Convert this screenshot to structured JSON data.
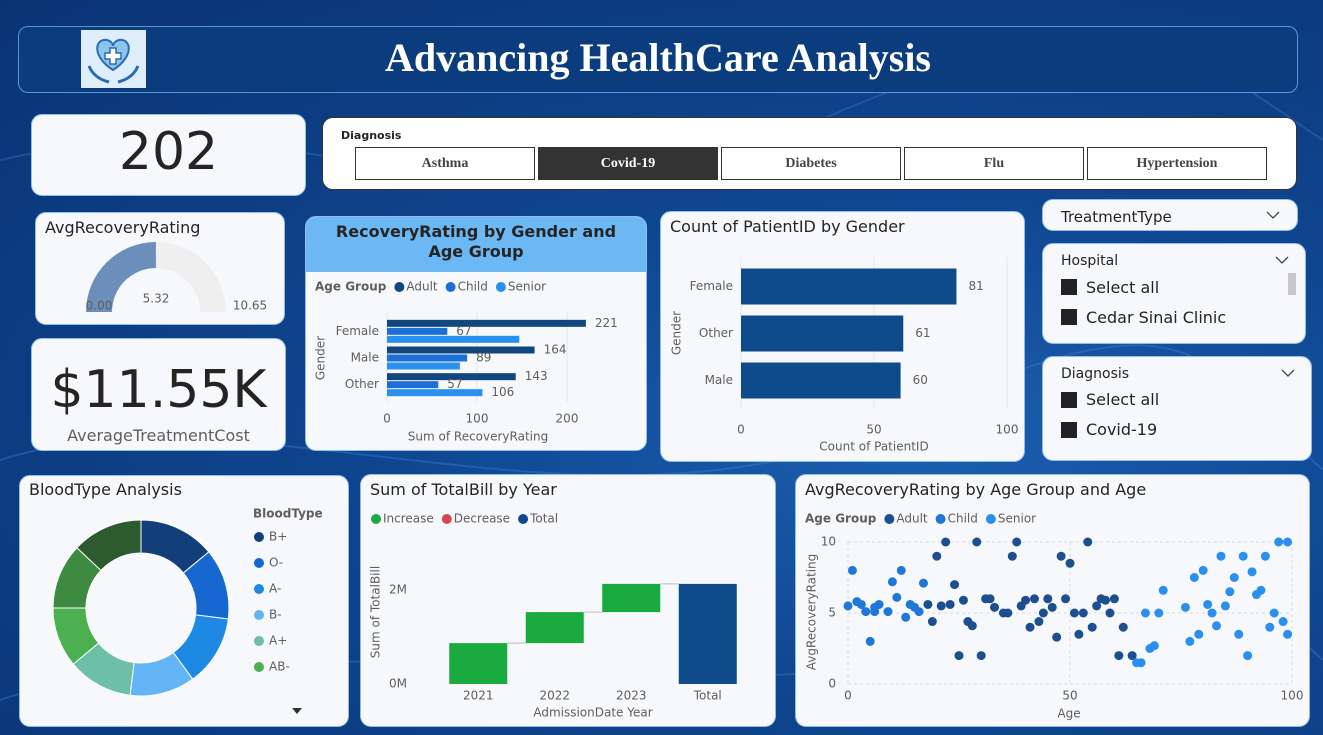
{
  "header": {
    "title": "Advancing HealthCare Analysis"
  },
  "patient_count": {
    "value": 202
  },
  "treatment_cost": {
    "value": "$11.55K",
    "label": "AverageTreatmentCost"
  },
  "diagnosis_buttons": {
    "title": "Diagnosis",
    "options": [
      "Asthma",
      "Covid-19",
      "Diabetes",
      "Flu",
      "Hypertension"
    ],
    "selected": "Covid-19"
  },
  "treatment_type": {
    "title": "TreatmentType"
  },
  "hospital": {
    "title": "Hospital",
    "items": [
      "Select all",
      "Cedar Sinai Clinic"
    ]
  },
  "diagnosis_list": {
    "title": "Diagnosis",
    "items": [
      "Select all",
      "Covid-19"
    ]
  },
  "chart_data": [
    {
      "type": "gauge",
      "title": "AvgRecoveryRating",
      "value": 5.32,
      "min": {
        "value": 0,
        "label": "0.00"
      },
      "max": 10.65,
      "color": "#6b8fba",
      "track_color": "#efefef"
    },
    {
      "type": "bar",
      "orientation": "horizontal",
      "title": "RecoveryRating by Gender and Age Group",
      "legend_title": "Age Group",
      "x_label": "Sum of RecoveryRating",
      "y_label": "Gender",
      "categories": [
        "Female",
        "Male",
        "Other"
      ],
      "series": [
        {
          "name": "Adult",
          "color": "#12467f",
          "values": [
            221,
            164,
            143
          ],
          "value_labels": [
            "221",
            "164",
            "143"
          ]
        },
        {
          "name": "Child",
          "color": "#1b6fd6",
          "values": [
            67,
            89,
            57
          ],
          "value_labels": [
            "67",
            "89",
            "57"
          ]
        },
        {
          "name": "Senior",
          "color": "#2a90f0",
          "values": [
            147,
            81,
            106
          ],
          "value_labels": [
            null,
            null,
            "106"
          ]
        }
      ],
      "xlim": [
        0,
        250
      ],
      "xticks": [
        0,
        100,
        200
      ],
      "grid": true
    },
    {
      "type": "bar",
      "orientation": "horizontal",
      "title": "Count of PatientID by Gender",
      "x_label": "Count of PatientID",
      "y_label": "Gender",
      "categories": [
        "Female",
        "Other",
        "Male"
      ],
      "values": [
        81,
        61,
        60
      ],
      "color": "#0f4a8a",
      "data_labels": true,
      "xlim": [
        0,
        100
      ],
      "xticks": [
        0,
        50,
        100
      ],
      "grid": true
    },
    {
      "type": "donut",
      "title": "BloodType Analysis",
      "legend_title": "BloodType",
      "categories": [
        "B+",
        "O-",
        "A-",
        "B-",
        "A+",
        "AB-",
        null,
        null
      ],
      "values": [
        14,
        13,
        13,
        12,
        12,
        11,
        12,
        13
      ],
      "colors": [
        "#123f7a",
        "#1668d0",
        "#1e88e5",
        "#64b5f6",
        "#6dbfa8",
        "#4caf50",
        "#3d8b40",
        "#2d5a2e"
      ]
    },
    {
      "type": "waterfall",
      "title": "Sum of TotalBill by Year",
      "x_label": "AdmissionDate Year",
      "y_label": "Sum of TotalBill",
      "legend": [
        {
          "name": "Increase",
          "color": "#1aab40"
        },
        {
          "name": "Decrease",
          "color": "#d64550"
        },
        {
          "name": "Total",
          "color": "#0f4a8a"
        }
      ],
      "categories": [
        "2021",
        "2022",
        "2023",
        "Total"
      ],
      "kinds": [
        "Increase",
        "Increase",
        "Increase",
        "Total"
      ],
      "values": [
        870000,
        660000,
        600000,
        2130000
      ],
      "ylim": [
        0,
        3000000
      ],
      "yticks": [
        {
          "value": 0,
          "label": "0M"
        },
        {
          "value": 2000000,
          "label": "2M"
        }
      ]
    },
    {
      "type": "scatter",
      "title": "AvgRecoveryRating by Age Group and Age",
      "legend_title": "Age Group",
      "x_label": "Age",
      "y_label": "AvgRecoveryRating",
      "series": [
        {
          "name": "Adult",
          "color": "#1d4f8f",
          "x": [
            18,
            19,
            20,
            21,
            22,
            23,
            24,
            25,
            26,
            27,
            28,
            29,
            30,
            31,
            32,
            33,
            35,
            36,
            37,
            38,
            39,
            40,
            41,
            42,
            43,
            44,
            45,
            46,
            47,
            48,
            49,
            50,
            51,
            52,
            53,
            54,
            55,
            56,
            57,
            58,
            59,
            60,
            61,
            62,
            64
          ],
          "values": [
            5.6,
            4.4,
            9,
            5.5,
            10,
            5.6,
            7,
            2,
            5.9,
            4.4,
            4.1,
            10,
            2,
            6,
            6,
            5.4,
            5,
            5,
            9,
            10,
            5.5,
            5.9,
            4,
            6,
            4.4,
            5,
            6,
            5.4,
            3.3,
            9,
            6,
            8.5,
            5,
            3.5,
            5,
            10,
            4,
            5.5,
            6,
            5.9,
            5,
            6,
            2,
            4,
            2
          ]
        },
        {
          "name": "Child",
          "color": "#1f78d6",
          "x": [
            0,
            1,
            2,
            3,
            4,
            5,
            6,
            6,
            7,
            9,
            10,
            11,
            12,
            13,
            14,
            15,
            16,
            17
          ],
          "values": [
            5.5,
            8,
            5.8,
            5.6,
            5.1,
            3,
            5.4,
            5.1,
            5.6,
            5.1,
            7.2,
            6.1,
            8,
            4.7,
            5.6,
            5.4,
            5.1,
            7.1
          ]
        },
        {
          "name": "Senior",
          "color": "#2b8ff0",
          "x": [
            65,
            66,
            67,
            68,
            69,
            70,
            71,
            76,
            77,
            78,
            79,
            80,
            81,
            82,
            83,
            84,
            85,
            86,
            87,
            88,
            89,
            90,
            91,
            92,
            93,
            94,
            95,
            96,
            97,
            98,
            99,
            99
          ],
          "values": [
            1.5,
            1.5,
            5,
            2.5,
            2.7,
            5,
            6.6,
            5.4,
            3,
            7.5,
            3.5,
            8,
            5.6,
            5,
            4.1,
            9,
            5.5,
            6.5,
            7.5,
            3.5,
            9,
            2,
            7.9,
            6.3,
            6.6,
            9,
            4,
            5,
            10,
            4.4,
            10,
            3.5
          ]
        }
      ],
      "xlim": [
        0,
        100
      ],
      "xticks": [
        0,
        50,
        100
      ],
      "ylim": [
        0,
        10
      ],
      "yticks": [
        0,
        5,
        10
      ],
      "grid": true
    }
  ]
}
